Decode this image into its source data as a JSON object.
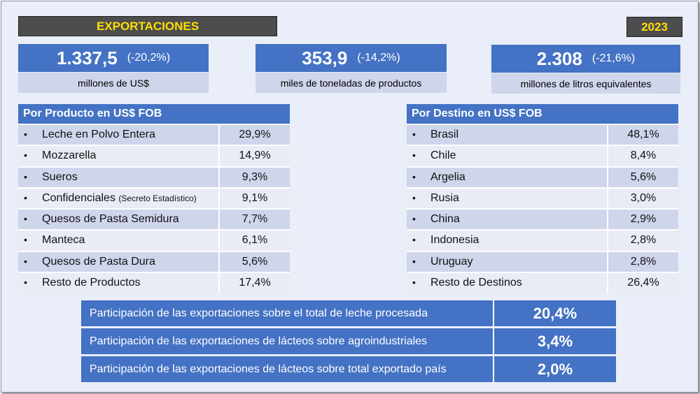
{
  "header": {
    "title": "EXPORTACIONES",
    "year": "2023"
  },
  "kpis": [
    {
      "value": "1.337,5",
      "change": "(-20,2%)",
      "label": "millones de US$"
    },
    {
      "value": "353,9",
      "change": "(-14,2%)",
      "label": "miles de toneladas de productos"
    },
    {
      "value": "2.308",
      "change": "(-21,6%)",
      "label": "millones de litros equivalentes"
    }
  ],
  "product_table": {
    "title": "Por Producto en US$ FOB",
    "rows": [
      {
        "name": "Leche en Polvo Entera",
        "note": "",
        "pct": "29,9%"
      },
      {
        "name": "Mozzarella",
        "note": "",
        "pct": "14,9%"
      },
      {
        "name": "Sueros",
        "note": "",
        "pct": "9,3%"
      },
      {
        "name": "Confidenciales",
        "note": "(Secreto Estadístico)",
        "pct": "9,1%"
      },
      {
        "name": "Quesos de Pasta Semidura",
        "note": "",
        "pct": "7,7%"
      },
      {
        "name": "Manteca",
        "note": "",
        "pct": "6,1%"
      },
      {
        "name": "Quesos de Pasta Dura",
        "note": "",
        "pct": "5,6%"
      },
      {
        "name": "Resto de Productos",
        "note": "",
        "pct": "17,4%"
      }
    ]
  },
  "destination_table": {
    "title": "Por Destino en US$ FOB",
    "rows": [
      {
        "name": "Brasil",
        "pct": "48,1%"
      },
      {
        "name": "Chile",
        "pct": "8,4%"
      },
      {
        "name": "Argelia",
        "pct": "5,6%"
      },
      {
        "name": "Rusia",
        "pct": "3,0%"
      },
      {
        "name": "China",
        "pct": "2,9%"
      },
      {
        "name": "Indonesia",
        "pct": "2,8%"
      },
      {
        "name": "Uruguay",
        "pct": "2,8%"
      },
      {
        "name": "Resto de Destinos",
        "pct": "26,4%"
      }
    ]
  },
  "participation": [
    {
      "label": "Participación de las exportaciones sobre el total de leche procesada",
      "value": "20,4%"
    },
    {
      "label": "Participación de las exportaciones de lácteos sobre agroindustriales",
      "value": "3,4%"
    },
    {
      "label": "Participación de las exportaciones de lácteos sobre total exportado país",
      "value": "2,0%"
    }
  ]
}
